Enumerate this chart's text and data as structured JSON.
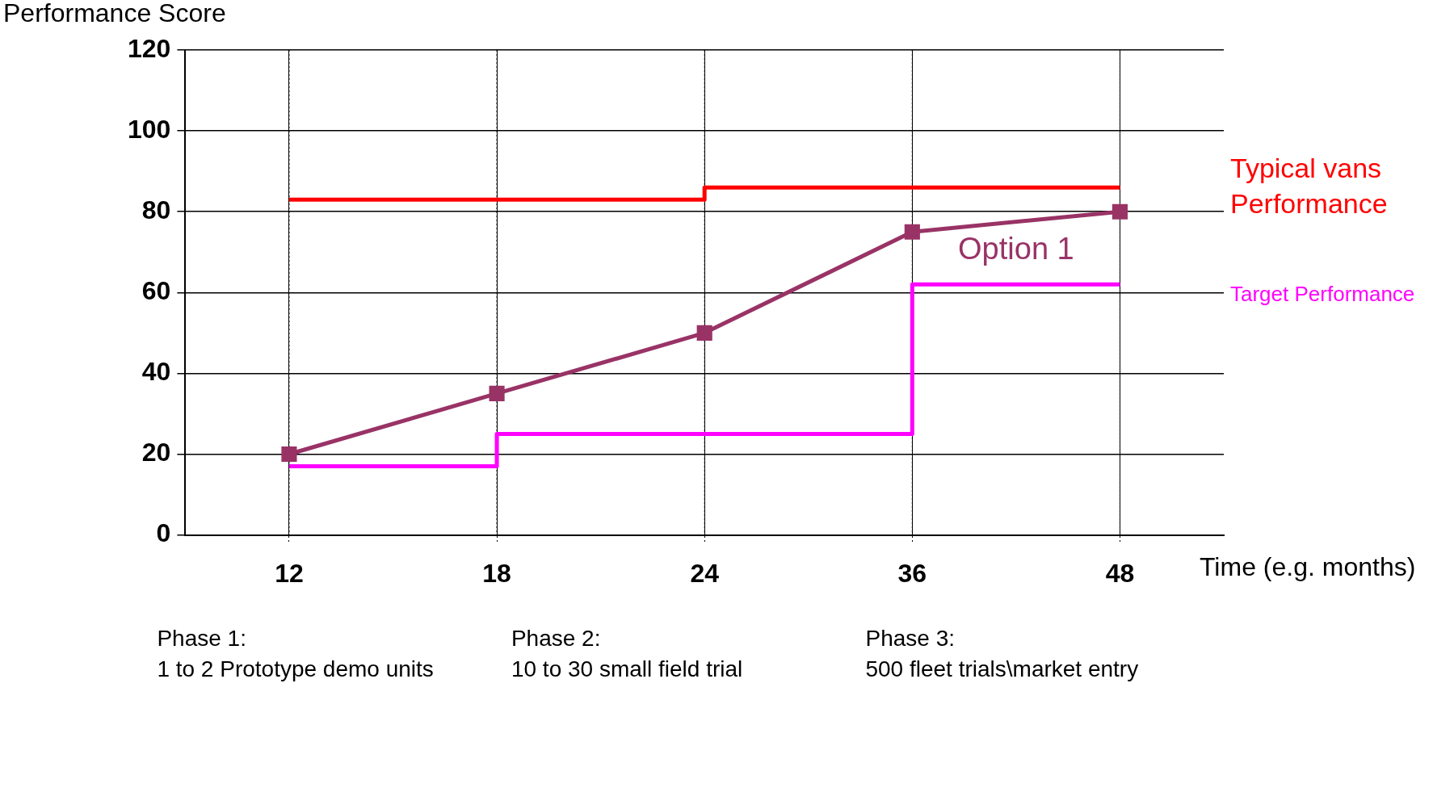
{
  "chart_data": {
    "type": "line",
    "xlabel": "Time (e.g. months)",
    "ylabel": "Performance Score",
    "categories": [
      "12",
      "18",
      "24",
      "36",
      "48"
    ],
    "series": [
      {
        "name": "Typical vans Performance",
        "type": "step",
        "color": "#ff0000",
        "values": [
          83,
          83,
          86,
          86,
          86
        ],
        "marker": "none"
      },
      {
        "name": "Target Performance",
        "type": "step",
        "color": "#ff00ff",
        "values": [
          17,
          25,
          25,
          62,
          62
        ],
        "marker": "none"
      },
      {
        "name": "Option 1",
        "type": "line",
        "color": "#993366",
        "values": [
          20,
          35,
          50,
          75,
          80
        ],
        "marker": "square"
      }
    ],
    "ylim": [
      0,
      120
    ],
    "yticks": [
      0,
      20,
      40,
      60,
      80,
      100,
      120
    ],
    "grid": true,
    "legend": false,
    "annotations": [
      "Phase 1:\n1 to 2 Prototype demo units",
      "Phase 2:\n10 to 30 small field trial",
      "Phase 3:\n500 fleet trials\\market entry"
    ]
  }
}
